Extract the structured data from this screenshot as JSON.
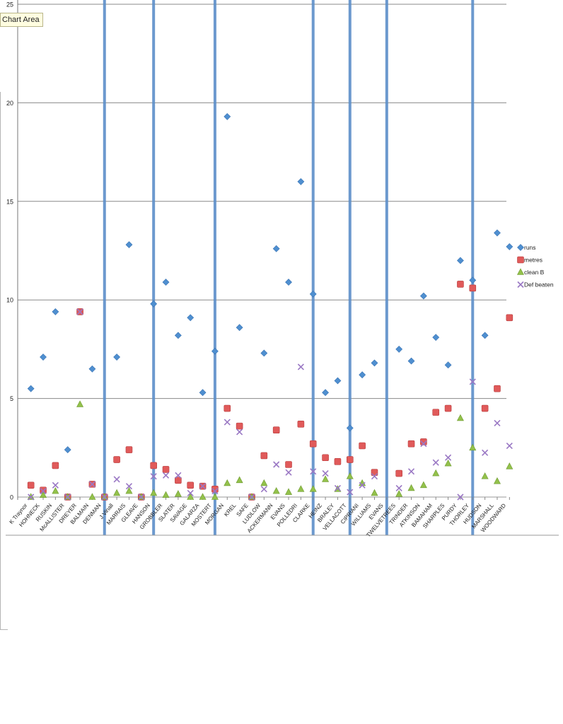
{
  "tooltip": {
    "label": "Chart Area"
  },
  "chart_data": {
    "type": "scatter",
    "ylim": [
      0,
      25
    ],
    "yticks": [
      0,
      5,
      10,
      15,
      20,
      25
    ],
    "grid": true,
    "legend_position": "right",
    "categories": [
      "K Traynor",
      "HOHNECK",
      "RUSKIN",
      "McALLISTER",
      "DREYER",
      "BALMAIN",
      "DENMAN",
      "J Vinall",
      "MARRAIS",
      "GLEAVE",
      "HANSON",
      "GROBBLER",
      "SLATER",
      "SAVAGE",
      "GALARZA",
      "MOSTERT",
      "MORGAN",
      "KREL",
      "SAFE",
      "LUDLOW",
      "ACKERMANN",
      "EVANS",
      "POLLEDRI",
      "CLARKE",
      "HEINZ",
      "BRALEY",
      "VELLACOTT",
      "CIPRIANI",
      "WILLIAMS",
      "EVANS",
      "TWELVETREES",
      "TRINDER",
      "ATKINSON",
      "BAMAHAM",
      "SHARPLES",
      "PURDY",
      "THORLEY",
      "HUDSON",
      "MARSHALL",
      "WOODWARD"
    ],
    "separators_after": [
      6,
      10,
      15,
      23,
      26,
      29,
      36
    ],
    "series": [
      {
        "name": "runs",
        "color": "#4f8fd0",
        "marker": "diamond",
        "values": [
          5.5,
          7.1,
          9.4,
          2.4,
          9.4,
          6.5,
          0,
          7.1,
          12.8,
          0,
          9.8,
          10.9,
          8.2,
          9.1,
          5.3,
          7.4,
          19.3,
          8.6,
          0,
          7.3,
          12.6,
          10.9,
          16.0,
          10.3,
          5.3,
          5.9,
          3.5,
          6.2,
          6.8,
          null,
          7.5,
          6.9,
          10.2,
          8.1,
          6.7,
          12.0,
          11.0,
          8.2,
          13.4,
          12.7
        ]
      },
      {
        "name": "metres",
        "color": "#e05a5a",
        "marker": "square",
        "values": [
          0.6,
          0.35,
          1.6,
          0,
          9.4,
          0.65,
          0,
          1.9,
          2.4,
          0,
          1.6,
          1.4,
          0.85,
          0.6,
          0.55,
          0.4,
          4.5,
          3.6,
          0,
          2.1,
          3.4,
          1.65,
          3.7,
          2.7,
          2.0,
          1.8,
          1.9,
          2.6,
          1.25,
          null,
          1.2,
          2.7,
          2.8,
          4.3,
          4.5,
          10.8,
          10.6,
          4.5,
          5.5,
          9.1
        ]
      },
      {
        "name": "clean B",
        "color": "#93c14b",
        "marker": "triangle",
        "values": [
          0,
          0.1,
          0.3,
          0,
          4.7,
          0,
          0,
          0.2,
          0.3,
          0,
          0.2,
          0.1,
          0.15,
          0,
          0,
          0,
          0.7,
          0.85,
          0,
          0.7,
          0.3,
          0.25,
          0.4,
          0.4,
          0.9,
          0.4,
          1.05,
          0.7,
          0.2,
          null,
          0.15,
          0.45,
          0.6,
          1.2,
          1.7,
          4.0,
          2.5,
          1.05,
          0.8,
          1.55
        ]
      },
      {
        "name": "Def beaten",
        "color": "#9a78c4",
        "marker": "x",
        "values": [
          0,
          0.3,
          0.6,
          0,
          9.4,
          0.65,
          0,
          0.9,
          0.55,
          0,
          1.05,
          1.1,
          1.1,
          0.2,
          0.55,
          0.3,
          3.8,
          3.3,
          0,
          0.4,
          1.65,
          1.25,
          6.6,
          1.3,
          1.2,
          0.45,
          0.25,
          0.6,
          1.05,
          null,
          0.45,
          1.3,
          2.7,
          1.75,
          2.0,
          0,
          5.85,
          2.25,
          3.75,
          2.6
        ]
      }
    ]
  }
}
